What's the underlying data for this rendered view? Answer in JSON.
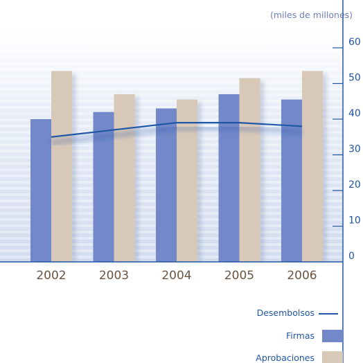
{
  "chart_data": {
    "type": "bar",
    "unit_label": "(miles de millones)",
    "categories": [
      "2002",
      "2003",
      "2004",
      "2005",
      "2006"
    ],
    "series": [
      {
        "name": "Firmas",
        "values": [
          40,
          42,
          43,
          47,
          45.5
        ]
      },
      {
        "name": "Aprobaciones",
        "values": [
          53.5,
          47,
          45.5,
          51.5,
          53.5
        ]
      },
      {
        "name": "Desembolsos",
        "type": "line",
        "values": [
          35,
          37,
          39,
          39,
          38
        ]
      }
    ],
    "yticks": [
      0,
      10,
      20,
      30,
      40,
      50,
      60
    ],
    "ylim": [
      0,
      65
    ],
    "legend": [
      "Desembolsos",
      "Firmas",
      "Aprobaciones"
    ],
    "colors": {
      "firmas": "#7388c8",
      "aprobaciones": "#d8c8b8",
      "desembolsos": "#1f56a6",
      "axis": "#1f56a6",
      "xlabel": "#6b5440",
      "unit": "#6b7fb8"
    }
  }
}
